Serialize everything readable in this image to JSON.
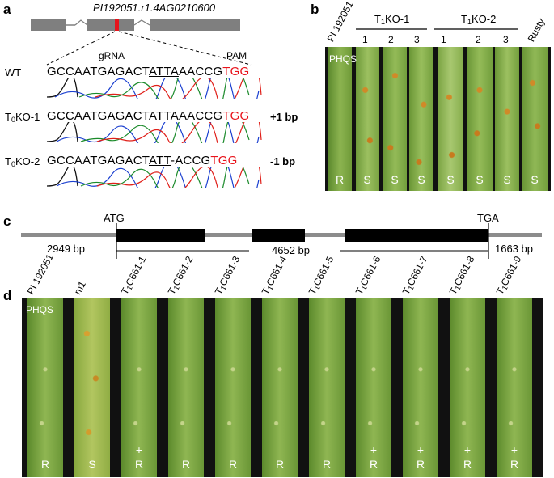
{
  "panel_a": {
    "label": "a",
    "gene_name": "PI192051.r1.4AG0210600",
    "grna_label": "gRNA",
    "pam_label": "PAM",
    "rows": [
      {
        "name": "WT",
        "seq_pre": "GCCAATGAGACT",
        "seq_ul": "ATTA",
        "seq_post": "AACCG",
        "seq_pam": "TGG",
        "change": ""
      },
      {
        "name_pre": "T",
        "name_sub": "0",
        "name_post": "KO-1",
        "seq_pre": "GCCAATGAGACT",
        "seq_ul": "ATTA",
        "seq_post": "AACCG",
        "seq_pam": "TGG",
        "change": "+1 bp"
      },
      {
        "name_pre": "T",
        "name_sub": "0",
        "name_post": "KO-2",
        "seq_pre": "GCCAATGAGACT",
        "seq_ul": "ATT",
        "seq_post": "-ACCG",
        "seq_pam": "TGG",
        "change": "-1 bp"
      }
    ]
  },
  "panel_b": {
    "label": "b",
    "col0": "PI 192051",
    "group1": {
      "pre": "T",
      "sub": "1",
      "post": "KO-1"
    },
    "group2": {
      "pre": "T",
      "sub": "1",
      "post": "KO-2"
    },
    "nums": [
      "1",
      "2",
      "3",
      "1",
      "2",
      "3"
    ],
    "col_last": "Rusty",
    "phqs": "PHQS",
    "reactions": [
      "R",
      "S",
      "S",
      "S",
      "S",
      "S",
      "S",
      "S"
    ]
  },
  "panel_c": {
    "label": "c",
    "start": "ATG",
    "stop": "TGA",
    "left_len": "2949 bp",
    "mid_len": "4652 bp",
    "right_len": "1663 bp"
  },
  "panel_d": {
    "label": "d",
    "phqs": "PHQS",
    "lines": [
      {
        "pre": "PI 192051",
        "sub": "",
        "post": ""
      },
      {
        "pre": "m1",
        "sub": "",
        "post": ""
      },
      {
        "pre": "T",
        "sub": "1",
        "post": "C661-1"
      },
      {
        "pre": "T",
        "sub": "1",
        "post": "C661-2"
      },
      {
        "pre": "T",
        "sub": "1",
        "post": "C661-3"
      },
      {
        "pre": "T",
        "sub": "1",
        "post": "C661-4"
      },
      {
        "pre": "T",
        "sub": "1",
        "post": "C661-5"
      },
      {
        "pre": "T",
        "sub": "1",
        "post": "C661-6"
      },
      {
        "pre": "T",
        "sub": "1",
        "post": "C661-7"
      },
      {
        "pre": "T",
        "sub": "1",
        "post": "C661-8"
      },
      {
        "pre": "T",
        "sub": "1",
        "post": "C661-9"
      }
    ],
    "plus": [
      "",
      "",
      "+",
      "",
      "",
      "",
      "",
      "+",
      "+",
      "+",
      "+"
    ],
    "reactions": [
      "R",
      "S",
      "R",
      "R",
      "R",
      "R",
      "R",
      "R",
      "R",
      "R",
      "R"
    ]
  },
  "colors": {
    "pam": "#e8141c",
    "gene_bar": "#7f7f7f",
    "leaf_bg": "#111111",
    "leaf_green": "#6f9a38"
  }
}
